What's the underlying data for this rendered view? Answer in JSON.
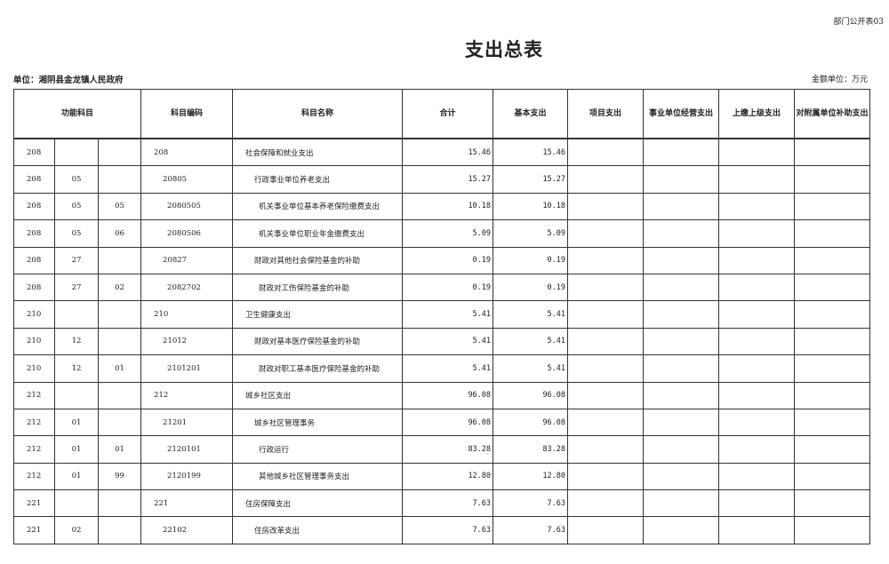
{
  "form_number": "部门公开表03",
  "title": "支出总表",
  "unit_label": "单位：湘阴县金龙镇人民政府",
  "money_unit": "金额单位：万元",
  "headers": [
    "功能科目",
    "科目编码",
    "科目名称",
    "合计",
    "基本支出",
    "项目支出",
    "事业单位经营支出",
    "上缴上级支出",
    "对附属单位补助支出"
  ],
  "rows": [
    {
      "f1": "208",
      "f2": "",
      "f3": "",
      "code": "208",
      "name": "社会保障和就业支出",
      "level": 1,
      "total": "15.46",
      "basic": "15.46"
    },
    {
      "f1": "208",
      "f2": "05",
      "f3": "",
      "code": "20805",
      "name": "行政事业单位养老支出",
      "level": 2,
      "total": "15.27",
      "basic": "15.27"
    },
    {
      "f1": "208",
      "f2": "05",
      "f3": "05",
      "code": "2080505",
      "name": "机关事业单位基本养老保险缴费支出",
      "level": 3,
      "total": "10.18",
      "basic": "10.18"
    },
    {
      "f1": "208",
      "f2": "05",
      "f3": "06",
      "code": "2080506",
      "name": "机关事业单位职业年金缴费支出",
      "level": 3,
      "total": "5.09",
      "basic": "5.09"
    },
    {
      "f1": "208",
      "f2": "27",
      "f3": "",
      "code": "20827",
      "name": "财政对其他社会保险基金的补助",
      "level": 2,
      "total": "0.19",
      "basic": "0.19"
    },
    {
      "f1": "208",
      "f2": "27",
      "f3": "02",
      "code": "2082702",
      "name": "财政对工伤保险基金的补助",
      "level": 3,
      "total": "0.19",
      "basic": "0.19"
    },
    {
      "f1": "210",
      "f2": "",
      "f3": "",
      "code": "210",
      "name": "卫生健康支出",
      "level": 1,
      "total": "5.41",
      "basic": "5.41"
    },
    {
      "f1": "210",
      "f2": "12",
      "f3": "",
      "code": "21012",
      "name": "财政对基本医疗保险基金的补助",
      "level": 2,
      "total": "5.41",
      "basic": "5.41"
    },
    {
      "f1": "210",
      "f2": "12",
      "f3": "01",
      "code": "2101201",
      "name": "财政对职工基本医疗保险基金的补助",
      "level": 3,
      "total": "5.41",
      "basic": "5.41"
    },
    {
      "f1": "212",
      "f2": "",
      "f3": "",
      "code": "212",
      "name": "城乡社区支出",
      "level": 1,
      "total": "96.08",
      "basic": "96.08"
    },
    {
      "f1": "212",
      "f2": "01",
      "f3": "",
      "code": "21201",
      "name": "城乡社区管理事务",
      "level": 2,
      "total": "96.08",
      "basic": "96.08"
    },
    {
      "f1": "212",
      "f2": "01",
      "f3": "01",
      "code": "2120101",
      "name": "行政运行",
      "level": 3,
      "total": "83.28",
      "basic": "83.28"
    },
    {
      "f1": "212",
      "f2": "01",
      "f3": "99",
      "code": "2120199",
      "name": "其他城乡社区管理事务支出",
      "level": 3,
      "total": "12.80",
      "basic": "12.80"
    },
    {
      "f1": "221",
      "f2": "",
      "f3": "",
      "code": "221",
      "name": "住房保障支出",
      "level": 1,
      "total": "7.63",
      "basic": "7.63"
    },
    {
      "f1": "221",
      "f2": "02",
      "f3": "",
      "code": "22102",
      "name": "住房改革支出",
      "level": 2,
      "total": "7.63",
      "basic": "7.63"
    }
  ]
}
